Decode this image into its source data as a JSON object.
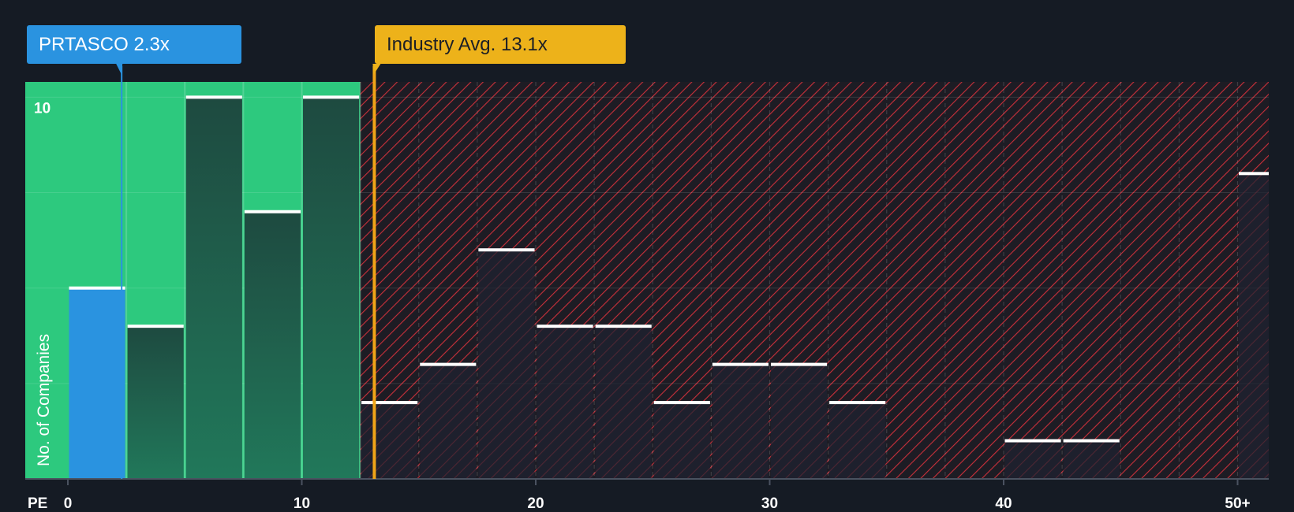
{
  "company_callout": {
    "label": "PRTASCO",
    "value": "2.3x"
  },
  "industry_callout": {
    "label": "Industry Avg.",
    "value": "13.1x"
  },
  "colors": {
    "background": "#151b24",
    "fair_zone": "#2dc97e",
    "company_bar": "#2a93e0",
    "company_marker": "#2a93e0",
    "industry_marker": "#f0a418",
    "overvalued_hatch": "#c9303a",
    "bar_dark": "#1f4a40",
    "bar_cap": "#ffffff"
  },
  "chart_data": {
    "type": "bar",
    "title": "",
    "xlabel": "PE",
    "ylabel": "No. of Companies",
    "bin_width": 2.5,
    "xlim": [
      -0.5,
      51.25
    ],
    "ylim": [
      0,
      10.4
    ],
    "x_ticks": [
      {
        "value": 0,
        "label": "0"
      },
      {
        "value": 10,
        "label": "10"
      },
      {
        "value": 20,
        "label": "20"
      },
      {
        "value": 30,
        "label": "30"
      },
      {
        "value": 40,
        "label": "40"
      },
      {
        "value": 50,
        "label": "50+"
      }
    ],
    "y_tick_labels": [
      {
        "value": 10,
        "label": "10"
      }
    ],
    "y_gridlines": [
      2.5,
      5,
      7.5,
      10
    ],
    "fair_zone_end": 12.5,
    "company_value": 2.3,
    "industry_avg": 13.1,
    "bins": [
      {
        "start": 0,
        "count": 5,
        "highlight": true
      },
      {
        "start": 2.5,
        "count": 4
      },
      {
        "start": 5,
        "count": 10
      },
      {
        "start": 7.5,
        "count": 7
      },
      {
        "start": 10,
        "count": 10
      },
      {
        "start": 12.5,
        "count": 2
      },
      {
        "start": 15,
        "count": 3
      },
      {
        "start": 17.5,
        "count": 6
      },
      {
        "start": 20,
        "count": 4
      },
      {
        "start": 22.5,
        "count": 4
      },
      {
        "start": 25,
        "count": 2
      },
      {
        "start": 27.5,
        "count": 3
      },
      {
        "start": 30,
        "count": 3
      },
      {
        "start": 32.5,
        "count": 2
      },
      {
        "start": 35,
        "count": 0
      },
      {
        "start": 37.5,
        "count": 0
      },
      {
        "start": 40,
        "count": 1
      },
      {
        "start": 42.5,
        "count": 1
      },
      {
        "start": 45,
        "count": 0
      },
      {
        "start": 47.5,
        "count": 0
      },
      {
        "start": 50,
        "count": 8
      }
    ]
  }
}
